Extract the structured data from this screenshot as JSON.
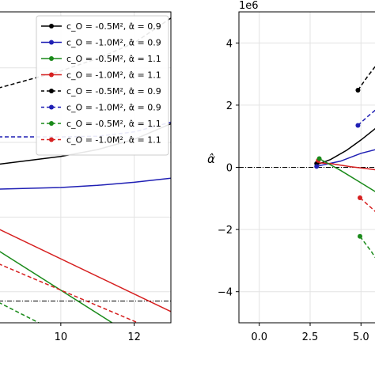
{
  "chart_data": [
    {
      "type": "line",
      "title": "",
      "xlabel": "",
      "ylabel": "",
      "xlim": [
        8.3,
        13
      ],
      "ylim": [
        0,
        1
      ],
      "x_ticks": [
        "10",
        "12"
      ],
      "grid": true,
      "legend_placement": "top-right",
      "legend": [
        {
          "label": "c_O = -0.5M², α̂ = 0.9",
          "color": "#000000",
          "style": "solid"
        },
        {
          "label": "c_O = -1.0M², α̂ = 0.9",
          "color": "#1f1fb4",
          "style": "solid"
        },
        {
          "label": "c_O = -0.5M², α̂ = 1.1",
          "color": "#1a8a1a",
          "style": "solid"
        },
        {
          "label": "c_O = -1.0M², α̂ = 1.1",
          "color": "#d62020",
          "style": "solid"
        },
        {
          "label": "c_O = -0.5M², α̂ = 0.9",
          "color": "#000000",
          "style": "dashed"
        },
        {
          "label": "c_O = -1.0M², α̂ = 0.9",
          "color": "#1f1fb4",
          "style": "dashed"
        },
        {
          "label": "c_O = -0.5M², α̂ = 1.1",
          "color": "#1a8a1a",
          "style": "dashed"
        },
        {
          "label": "c_O = -1.0M², α̂ = 1.1",
          "color": "#d62020",
          "style": "dashed"
        }
      ],
      "series": [
        {
          "color": "#000000",
          "dash": true,
          "x": [
            8.3,
            10,
            11,
            12,
            13
          ],
          "y": [
            0.755,
            0.81,
            0.85,
            0.9,
            0.98
          ]
        },
        {
          "color": "#1f1fb4",
          "dash": true,
          "x": [
            8.3,
            10,
            11,
            12,
            13
          ],
          "y": [
            0.598,
            0.598,
            0.6,
            0.614,
            0.645
          ]
        },
        {
          "color": "#000000",
          "dash": false,
          "x": [
            8.3,
            10,
            11,
            12,
            13
          ],
          "y": [
            0.51,
            0.535,
            0.557,
            0.59,
            0.64
          ]
        },
        {
          "color": "#1f1fb4",
          "dash": false,
          "x": [
            8.3,
            10,
            11,
            12,
            13
          ],
          "y": [
            0.43,
            0.435,
            0.442,
            0.452,
            0.465
          ]
        },
        {
          "color": "#d62020",
          "dash": false,
          "x": [
            8.3,
            13
          ],
          "y": [
            0.302,
            0.036
          ]
        },
        {
          "color": "#1a8a1a",
          "dash": false,
          "x": [
            8.3,
            11.4
          ],
          "y": [
            0.232,
            0.0
          ]
        },
        {
          "color": "#d62020",
          "dash": true,
          "x": [
            8.3,
            12.1
          ],
          "y": [
            0.19,
            0.0
          ]
        },
        {
          "color": "#1a8a1a",
          "dash": true,
          "x": [
            8.3,
            9.4
          ],
          "y": [
            0.066,
            0.0
          ]
        }
      ],
      "reference_line": {
        "y": 0.07,
        "style": "dashdot",
        "color": "#000000"
      }
    },
    {
      "type": "line",
      "title": "",
      "xlabel": "",
      "ylabel": "α̂",
      "offset_text": "1e6",
      "xlim": [
        -1,
        6
      ],
      "ylim": [
        -5,
        5
      ],
      "x_ticks": [
        {
          "v": 0,
          "label": "0.0"
        },
        {
          "v": 2.5,
          "label": "2.5"
        },
        {
          "v": 5.0,
          "label": "5.0"
        }
      ],
      "y_ticks": [
        {
          "v": 4,
          "label": "4"
        },
        {
          "v": 2,
          "label": "2"
        },
        {
          "v": 0,
          "label": "0"
        },
        {
          "v": -2,
          "label": "−2"
        },
        {
          "v": -4,
          "label": "−4"
        }
      ],
      "grid": true,
      "series": [
        {
          "color": "#000000",
          "dash": false,
          "x": [
            2.8,
            3.5,
            4.3,
            5.0,
            6.0
          ],
          "y": [
            0.08,
            0.25,
            0.55,
            0.88,
            1.4
          ]
        },
        {
          "color": "#1f1fb4",
          "dash": false,
          "x": [
            2.8,
            4.0,
            5.0,
            6.0
          ],
          "y": [
            0.03,
            0.2,
            0.45,
            0.62
          ]
        },
        {
          "color": "#d62020",
          "dash": false,
          "x": [
            2.8,
            3.5,
            4.5,
            5.0,
            6.0
          ],
          "y": [
            0.15,
            0.12,
            0.02,
            -0.02,
            -0.1
          ]
        },
        {
          "color": "#1a8a1a",
          "dash": false,
          "x": [
            2.95,
            4.0,
            5.0,
            6.0
          ],
          "y": [
            0.28,
            -0.1,
            -0.5,
            -0.9
          ]
        },
        {
          "color": "#000000",
          "dash": true,
          "marker_start": true,
          "x": [
            4.85,
            5.3,
            6.0
          ],
          "y": [
            2.48,
            2.9,
            3.5
          ]
        },
        {
          "color": "#1f1fb4",
          "dash": true,
          "marker_start": true,
          "x": [
            4.85,
            5.3,
            6.0
          ],
          "y": [
            1.35,
            1.62,
            2.0
          ]
        },
        {
          "color": "#d62020",
          "dash": true,
          "marker_start": true,
          "x": [
            4.95,
            5.5,
            6.0
          ],
          "y": [
            -0.98,
            -1.3,
            -1.6
          ]
        },
        {
          "color": "#1a8a1a",
          "dash": true,
          "marker_start": true,
          "x": [
            4.95,
            5.5,
            6.0
          ],
          "y": [
            -2.22,
            -2.7,
            -3.2
          ]
        }
      ],
      "points": [
        {
          "color": "#000000",
          "x": 2.82,
          "y": 0.12
        },
        {
          "color": "#1f1fb4",
          "x": 2.82,
          "y": 0.03
        },
        {
          "color": "#d62020",
          "x": 2.9,
          "y": 0.22
        },
        {
          "color": "#1a8a1a",
          "x": 2.95,
          "y": 0.28
        }
      ],
      "reference_line": {
        "y": 0,
        "style": "dashdot",
        "color": "#000000"
      }
    }
  ]
}
